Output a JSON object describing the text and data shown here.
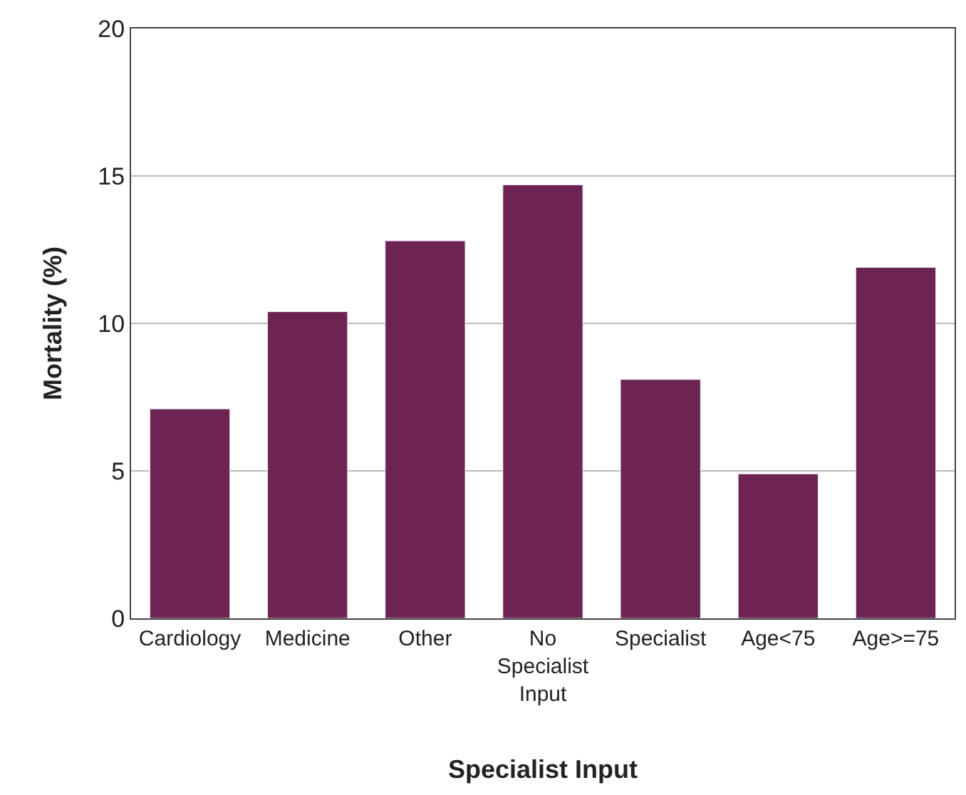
{
  "chart_data": {
    "type": "bar",
    "xlabel": "Specialist Input",
    "ylabel": "Mortality (%)",
    "categories": [
      "Cardiology",
      "Medicine",
      "Other",
      "No Specialist Input",
      "Specialist",
      "Age<75",
      "Age>=75"
    ],
    "values": [
      7.1,
      10.4,
      12.8,
      14.7,
      8.1,
      4.9,
      11.9
    ],
    "color": "#6d2452",
    "ylim": [
      0,
      20
    ],
    "yticks": [
      0,
      5,
      10,
      15,
      20
    ],
    "grid": "y"
  }
}
